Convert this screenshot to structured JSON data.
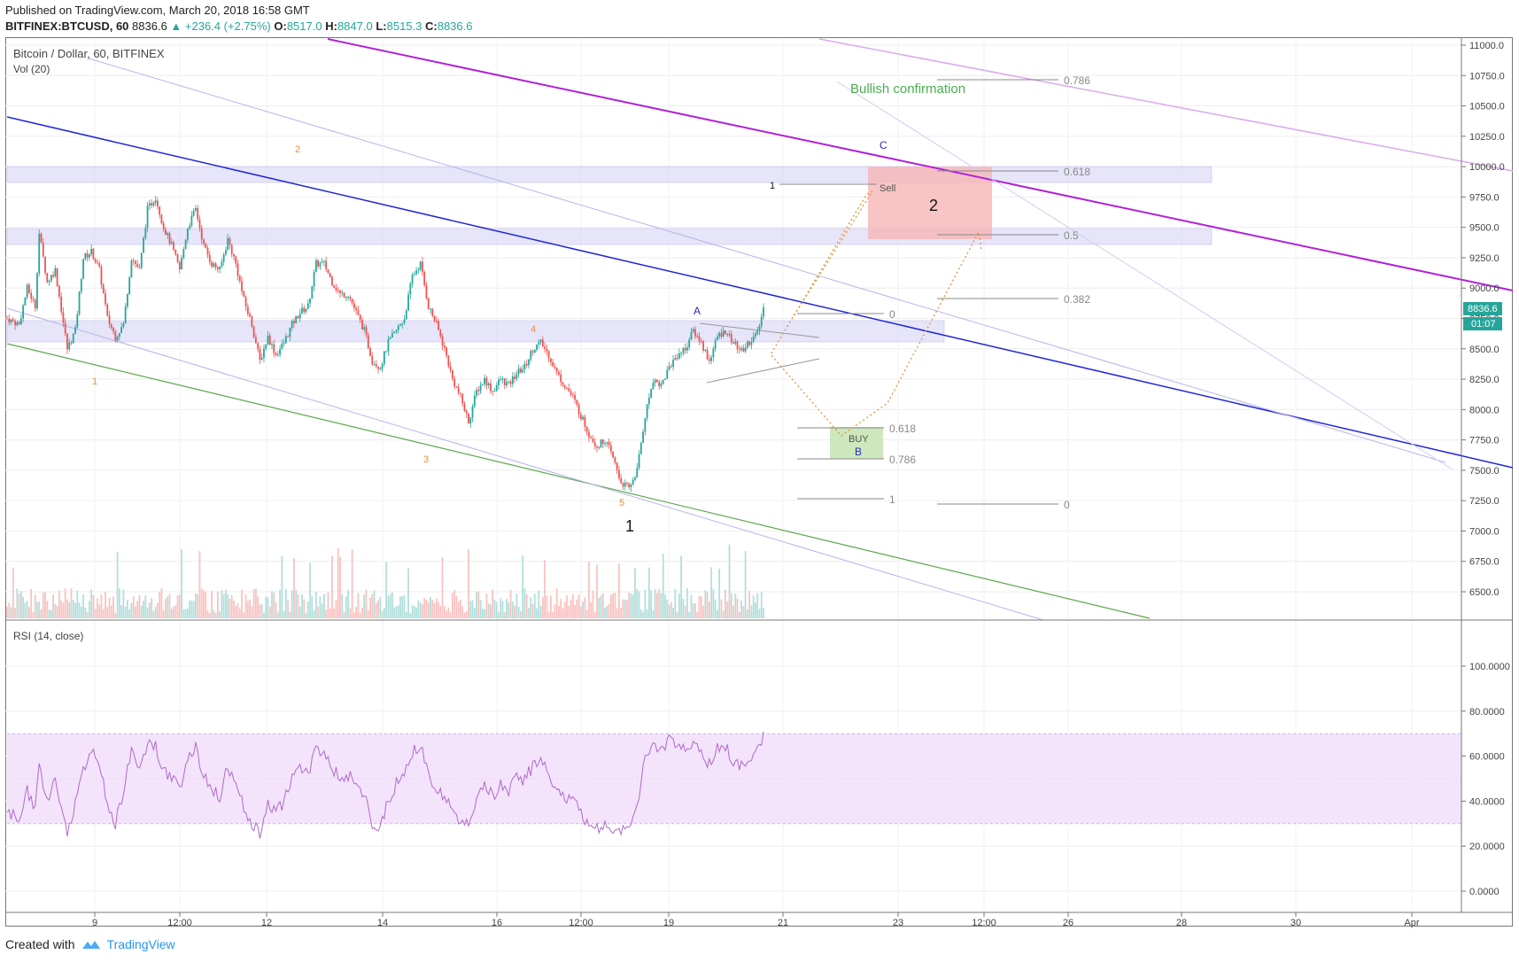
{
  "header": {
    "published": "Published on TradingView.com, March 20, 2018 16:58 GMT",
    "symbol": "BITFINEX:BTCUSD, 60",
    "last": "8836.6",
    "change": "▲ +236.4 (+2.75%)",
    "o_label": "O:",
    "o_value": "8517.0",
    "h_label": "H:",
    "h_value": "8847.0",
    "l_label": "L:",
    "l_value": "8515.3",
    "c_label": "C:",
    "c_value": "8836.6"
  },
  "legend": {
    "title": "Bitcoin / Dollar, 60, BITFINEX",
    "vol": "Vol (20)",
    "rsi": "RSI (14, close)"
  },
  "price_badge": {
    "price": "8836.6",
    "countdown": "01:07"
  },
  "colors": {
    "up": "#26a69a",
    "down": "#ef5350",
    "blue_line": "#1f25d6",
    "purple_line": "#b120d8",
    "green_line": "#5aa84a",
    "fib": "#888888",
    "rsi": "#b06ac9",
    "orange": "#e69138"
  },
  "chart_data": {
    "type": "candlestick",
    "title": "Bitcoin / Dollar, 60, BITFINEX",
    "price_axis": {
      "ticks": [
        "11000.0",
        "10750.0",
        "10500.0",
        "10250.0",
        "10000.0",
        "9750.0",
        "9500.0",
        "9250.0",
        "9000.0",
        "8750.0",
        "8500.0",
        "8250.0",
        "8000.0",
        "7750.0",
        "7500.0",
        "7250.0",
        "7000.0",
        "6750.0",
        "6500.0"
      ],
      "range": [
        6370,
        11020
      ]
    },
    "rsi_axis": {
      "ticks": [
        "100.0000",
        "80.0000",
        "60.0000",
        "40.0000",
        "20.0000",
        "0.0000"
      ],
      "range": [
        -10,
        118
      ],
      "band": [
        30,
        70
      ]
    },
    "time_axis": [
      "9",
      "12:00",
      "12",
      "14",
      "16",
      "12:00",
      "19",
      "21",
      "23",
      "12:00",
      "26",
      "28",
      "30",
      "Apr"
    ],
    "price_path": [
      [
        0,
        8750
      ],
      [
        6,
        8700
      ],
      [
        10,
        9000
      ],
      [
        14,
        8850
      ],
      [
        16,
        9450
      ],
      [
        20,
        9050
      ],
      [
        24,
        9150
      ],
      [
        30,
        8500
      ],
      [
        34,
        8650
      ],
      [
        38,
        9250
      ],
      [
        42,
        9300
      ],
      [
        46,
        9150
      ],
      [
        50,
        8750
      ],
      [
        54,
        8600
      ],
      [
        58,
        8700
      ],
      [
        62,
        9250
      ],
      [
        66,
        9150
      ],
      [
        70,
        9650
      ],
      [
        74,
        9750
      ],
      [
        78,
        9500
      ],
      [
        82,
        9350
      ],
      [
        86,
        9150
      ],
      [
        90,
        9500
      ],
      [
        94,
        9650
      ],
      [
        98,
        9350
      ],
      [
        102,
        9200
      ],
      [
        106,
        9150
      ],
      [
        110,
        9400
      ],
      [
        114,
        9200
      ],
      [
        118,
        8900
      ],
      [
        122,
        8700
      ],
      [
        126,
        8400
      ],
      [
        130,
        8600
      ],
      [
        134,
        8450
      ],
      [
        138,
        8550
      ],
      [
        142,
        8700
      ],
      [
        146,
        8800
      ],
      [
        150,
        8850
      ],
      [
        154,
        9200
      ],
      [
        158,
        9200
      ],
      [
        162,
        9050
      ],
      [
        166,
        8950
      ],
      [
        170,
        8950
      ],
      [
        174,
        8800
      ],
      [
        178,
        8650
      ],
      [
        182,
        8400
      ],
      [
        186,
        8350
      ],
      [
        190,
        8550
      ],
      [
        194,
        8650
      ],
      [
        198,
        8750
      ],
      [
        202,
        9100
      ],
      [
        206,
        9200
      ],
      [
        210,
        8850
      ],
      [
        214,
        8700
      ],
      [
        218,
        8500
      ],
      [
        222,
        8250
      ],
      [
        226,
        8100
      ],
      [
        230,
        7900
      ],
      [
        234,
        8150
      ],
      [
        238,
        8250
      ],
      [
        242,
        8150
      ],
      [
        246,
        8250
      ],
      [
        250,
        8200
      ],
      [
        254,
        8300
      ],
      [
        258,
        8350
      ],
      [
        262,
        8500
      ],
      [
        266,
        8550
      ],
      [
        270,
        8450
      ],
      [
        274,
        8300
      ],
      [
        278,
        8200
      ],
      [
        282,
        8100
      ],
      [
        286,
        7950
      ],
      [
        290,
        7800
      ],
      [
        294,
        7700
      ],
      [
        298,
        7750
      ],
      [
        302,
        7600
      ],
      [
        306,
        7400
      ],
      [
        310,
        7350
      ],
      [
        314,
        7500
      ],
      [
        318,
        7950
      ],
      [
        322,
        8250
      ],
      [
        326,
        8200
      ],
      [
        330,
        8350
      ],
      [
        334,
        8450
      ],
      [
        338,
        8500
      ],
      [
        342,
        8650
      ],
      [
        346,
        8550
      ],
      [
        350,
        8400
      ],
      [
        354,
        8600
      ],
      [
        358,
        8650
      ],
      [
        362,
        8550
      ],
      [
        366,
        8480
      ],
      [
        370,
        8560
      ],
      [
        374,
        8620
      ],
      [
        377,
        8836
      ]
    ],
    "rsi_path": [
      [
        0,
        35
      ],
      [
        6,
        32
      ],
      [
        10,
        45
      ],
      [
        14,
        35
      ],
      [
        16,
        55
      ],
      [
        20,
        42
      ],
      [
        24,
        48
      ],
      [
        30,
        25
      ],
      [
        34,
        40
      ],
      [
        38,
        55
      ],
      [
        42,
        62
      ],
      [
        46,
        55
      ],
      [
        50,
        40
      ],
      [
        54,
        30
      ],
      [
        58,
        45
      ],
      [
        62,
        62
      ],
      [
        66,
        55
      ],
      [
        70,
        66
      ],
      [
        74,
        64
      ],
      [
        78,
        55
      ],
      [
        82,
        50
      ],
      [
        86,
        45
      ],
      [
        90,
        60
      ],
      [
        94,
        64
      ],
      [
        98,
        52
      ],
      [
        102,
        45
      ],
      [
        106,
        42
      ],
      [
        110,
        55
      ],
      [
        114,
        48
      ],
      [
        118,
        38
      ],
      [
        122,
        30
      ],
      [
        126,
        25
      ],
      [
        130,
        40
      ],
      [
        134,
        35
      ],
      [
        138,
        40
      ],
      [
        142,
        50
      ],
      [
        146,
        55
      ],
      [
        150,
        52
      ],
      [
        154,
        63
      ],
      [
        158,
        62
      ],
      [
        162,
        55
      ],
      [
        166,
        50
      ],
      [
        170,
        52
      ],
      [
        174,
        47
      ],
      [
        178,
        42
      ],
      [
        182,
        30
      ],
      [
        186,
        28
      ],
      [
        190,
        40
      ],
      [
        194,
        48
      ],
      [
        198,
        52
      ],
      [
        202,
        62
      ],
      [
        206,
        64
      ],
      [
        210,
        52
      ],
      [
        214,
        45
      ],
      [
        218,
        42
      ],
      [
        222,
        35
      ],
      [
        226,
        32
      ],
      [
        230,
        30
      ],
      [
        234,
        42
      ],
      [
        238,
        47
      ],
      [
        242,
        42
      ],
      [
        246,
        48
      ],
      [
        250,
        45
      ],
      [
        254,
        50
      ],
      [
        258,
        50
      ],
      [
        262,
        55
      ],
      [
        266,
        58
      ],
      [
        270,
        52
      ],
      [
        274,
        45
      ],
      [
        278,
        42
      ],
      [
        282,
        40
      ],
      [
        286,
        35
      ],
      [
        290,
        30
      ],
      [
        294,
        28
      ],
      [
        298,
        30
      ],
      [
        302,
        28
      ],
      [
        306,
        25
      ],
      [
        310,
        30
      ],
      [
        314,
        38
      ],
      [
        318,
        58
      ],
      [
        322,
        66
      ],
      [
        326,
        63
      ],
      [
        330,
        67
      ],
      [
        334,
        65
      ],
      [
        338,
        62
      ],
      [
        342,
        66
      ],
      [
        346,
        60
      ],
      [
        350,
        56
      ],
      [
        354,
        63
      ],
      [
        358,
        64
      ],
      [
        362,
        58
      ],
      [
        366,
        55
      ],
      [
        370,
        60
      ],
      [
        374,
        62
      ],
      [
        377,
        70
      ]
    ],
    "annotations": {
      "bullish": "Bullish confirmation",
      "sell": "Sell",
      "buy": "BUY",
      "wave_A": "A",
      "wave_B": "B",
      "wave_C": "C",
      "wave_1_big": "1",
      "wave_2_big": "2",
      "w1": "1",
      "w2": "2",
      "w3": "3",
      "w4": "4",
      "w5": "5",
      "fib_left": {
        "f0": "0",
        "f618": "0.618",
        "f786": "0.786",
        "f1": "1"
      },
      "fib_right": {
        "f786": "0.786",
        "f618": "0.618",
        "f5": "0.5",
        "f382": "0.382",
        "f0": "0"
      },
      "sell_label_1": "1"
    }
  },
  "footer": {
    "created": "Created with",
    "brand": "TradingView"
  }
}
